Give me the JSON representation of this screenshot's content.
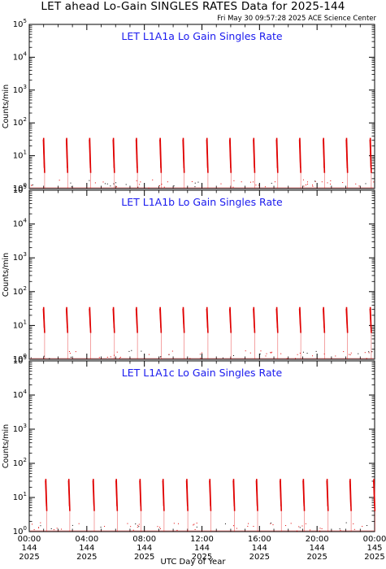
{
  "title": "LET ahead Lo-Gain SINGLES RATES Data for 2025-144",
  "timestamp": "Fri May 30 09:57:28 2025 ACE Science Center",
  "colors": {
    "trace": "#e00000",
    "panel_title": "#1a1aee",
    "axis": "#000000"
  },
  "chart_data": [
    {
      "type": "line",
      "title": "LET L1A1a Lo Gain Singles Rate",
      "ylabel": "Counts/min",
      "yscale": "log",
      "ylim": [
        1,
        100000
      ],
      "y_ticks": [
        "10^0",
        "10^1",
        "10^2",
        "10^3",
        "10^4",
        "10^5"
      ],
      "xlim_hours": [
        0,
        24
      ],
      "spike_hours": [
        1.0,
        2.6,
        4.2,
        5.85,
        7.45,
        9.1,
        10.7,
        12.35,
        13.95,
        15.6,
        17.2,
        18.8,
        20.45,
        22.05,
        23.7
      ],
      "spike_peak": 35,
      "spike_base": 3,
      "background_level": 1
    },
    {
      "type": "line",
      "title": "LET L1A1b Lo Gain Singles Rate",
      "ylabel": "Counts/min",
      "yscale": "log",
      "ylim": [
        1,
        100000
      ],
      "y_ticks": [
        "10^0",
        "10^1",
        "10^2",
        "10^3",
        "10^4",
        "10^5"
      ],
      "xlim_hours": [
        0,
        24
      ],
      "spike_hours": [
        1.0,
        2.6,
        4.2,
        5.85,
        7.45,
        9.1,
        10.7,
        12.35,
        13.95,
        15.6,
        17.2,
        18.8,
        20.45,
        22.05,
        23.7
      ],
      "spike_peak": 35,
      "spike_base": 6,
      "background_level": 1
    },
    {
      "type": "line",
      "title": "LET L1A1c Lo Gain Singles Rate",
      "ylabel": "Counts/min",
      "yscale": "log",
      "ylim": [
        1,
        100000
      ],
      "y_ticks": [
        "10^0",
        "10^1",
        "10^2",
        "10^3",
        "10^4",
        "10^5"
      ],
      "xlim_hours": [
        0,
        24
      ],
      "spike_hours": [
        1.15,
        2.75,
        4.45,
        6.05,
        7.7,
        9.3,
        10.95,
        12.55,
        14.2,
        15.8,
        17.45,
        19.05,
        20.7,
        22.3,
        23.95
      ],
      "spike_peak": 35,
      "spike_base": 4,
      "background_level": 1
    }
  ],
  "x_axis": {
    "label": "UTC Day of Year",
    "ticks": [
      {
        "hour": 0,
        "time": "00:00",
        "doy": "144",
        "year": "2025"
      },
      {
        "hour": 4,
        "time": "04:00",
        "doy": "144",
        "year": "2025"
      },
      {
        "hour": 8,
        "time": "08:00",
        "doy": "144",
        "year": "2025"
      },
      {
        "hour": 12,
        "time": "12:00",
        "doy": "144",
        "year": "2025"
      },
      {
        "hour": 16,
        "time": "16:00",
        "doy": "144",
        "year": "2025"
      },
      {
        "hour": 20,
        "time": "20:00",
        "doy": "144",
        "year": "2025"
      },
      {
        "hour": 24,
        "time": "00:00",
        "doy": "145",
        "year": "2025"
      }
    ]
  }
}
